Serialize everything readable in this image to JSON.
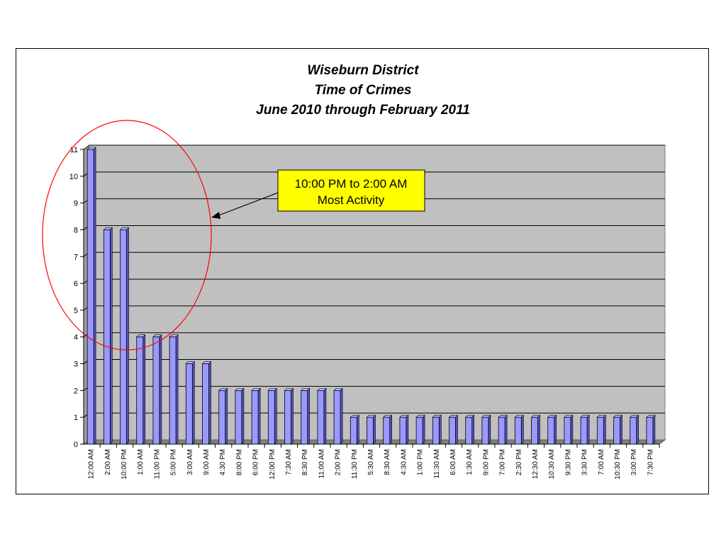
{
  "chart_data": {
    "type": "bar",
    "title_lines": [
      "Wiseburn District",
      "Time of Crimes",
      "June 2010 through February 2011"
    ],
    "categories": [
      "12:00 AM",
      "2:00 AM",
      "10:00 PM",
      "1:00 AM",
      "11:00 PM",
      "5:00 PM",
      "3:00 AM",
      "9:00 AM",
      "4:30 PM",
      "8:00 PM",
      "6:00 PM",
      "12:00 PM",
      "7:30 AM",
      "8:30 PM",
      "11:00 AM",
      "2:00 PM",
      "11:30 PM",
      "5:30 AM",
      "8:30 AM",
      "4:30 AM",
      "1:00 PM",
      "11:30 AM",
      "6:00 AM",
      "1:30 AM",
      "9:00 PM",
      "7:00 PM",
      "2:30 PM",
      "12:30 AM",
      "10:30 AM",
      "9:30 PM",
      "3:30 PM",
      "7:00 AM",
      "10:30 PM",
      "3:00 PM",
      "7:30 PM"
    ],
    "values": [
      11,
      8,
      8,
      4,
      4,
      4,
      3,
      3,
      2,
      2,
      2,
      2,
      2,
      2,
      2,
      2,
      1,
      1,
      1,
      1,
      1,
      1,
      1,
      1,
      1,
      1,
      1,
      1,
      1,
      1,
      1,
      1,
      1,
      1,
      1
    ],
    "y_ticks": [
      "0",
      "1",
      "2",
      "3",
      "4",
      "5",
      "6",
      "7",
      "8",
      "9",
      "10",
      "11"
    ],
    "ylim": [
      0,
      11
    ],
    "grid": true,
    "colors": {
      "bar": "#9999ff",
      "bar_side": "#5555c0",
      "plot_bg": "#c0c0c0",
      "callout_bg": "#ffff00",
      "ellipse": "#ff0000"
    },
    "annotation": {
      "line1": "10:00 PM to 2:00 AM",
      "line2": "Most Activity"
    }
  }
}
